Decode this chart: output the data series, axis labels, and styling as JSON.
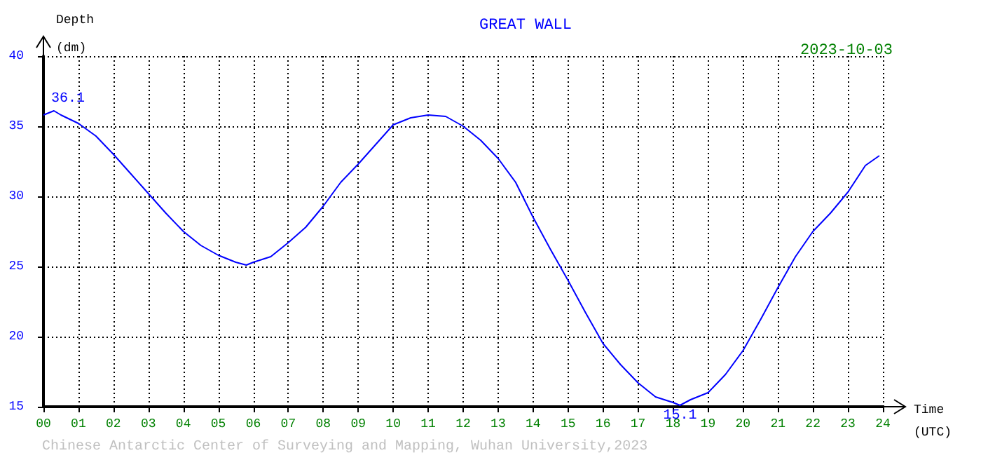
{
  "chart_data": {
    "type": "line",
    "title": "GREAT WALL",
    "subtitle": "2023-10-03",
    "xlabel": "Time\n(UTC)",
    "ylabel": "Depth\n(dm)",
    "x": [
      0,
      0.3,
      0.5,
      1,
      1.5,
      2,
      2.5,
      3,
      3.5,
      4,
      4.5,
      5,
      5.5,
      5.8,
      6,
      6.5,
      7,
      7.5,
      8,
      8.5,
      9,
      9.5,
      10,
      10.5,
      11,
      11.5,
      12,
      12.5,
      13,
      13.5,
      14,
      14.5,
      15,
      15.5,
      16,
      16.5,
      17,
      17.5,
      18,
      18.2,
      18.5,
      19,
      19.5,
      20,
      20.5,
      21,
      21.5,
      22,
      22.5,
      23,
      23.5,
      23.9
    ],
    "series": [
      {
        "color": "#0000ff",
        "values": [
          35.8,
          36.1,
          35.8,
          35.2,
          34.3,
          33.0,
          31.6,
          30.2,
          28.8,
          27.5,
          26.5,
          25.8,
          25.3,
          25.1,
          25.3,
          25.7,
          26.7,
          27.8,
          29.3,
          31.0,
          32.3,
          33.7,
          35.1,
          35.6,
          35.8,
          35.7,
          35.0,
          34.0,
          32.7,
          31.0,
          28.5,
          26.2,
          24.0,
          21.7,
          19.5,
          18.0,
          16.7,
          15.7,
          15.3,
          15.1,
          15.5,
          16.0,
          17.3,
          19.0,
          21.2,
          23.5,
          25.7,
          27.5,
          28.8,
          30.3,
          32.2,
          32.9
        ]
      }
    ],
    "xlim": [
      0,
      24
    ],
    "xticks": [
      {
        "value": 0,
        "label": "00"
      },
      {
        "value": 1,
        "label": "01"
      },
      {
        "value": 2,
        "label": "02"
      },
      {
        "value": 3,
        "label": "03"
      },
      {
        "value": 4,
        "label": "04"
      },
      {
        "value": 5,
        "label": "05"
      },
      {
        "value": 6,
        "label": "06"
      },
      {
        "value": 7,
        "label": "07"
      },
      {
        "value": 8,
        "label": "08"
      },
      {
        "value": 9,
        "label": "09"
      },
      {
        "value": 10,
        "label": "10"
      },
      {
        "value": 11,
        "label": "11"
      },
      {
        "value": 12,
        "label": "12"
      },
      {
        "value": 13,
        "label": "13"
      },
      {
        "value": 14,
        "label": "14"
      },
      {
        "value": 15,
        "label": "15"
      },
      {
        "value": 16,
        "label": "16"
      },
      {
        "value": 17,
        "label": "17"
      },
      {
        "value": 18,
        "label": "18"
      },
      {
        "value": 19,
        "label": "19"
      },
      {
        "value": 20,
        "label": "20"
      },
      {
        "value": 21,
        "label": "21"
      },
      {
        "value": 22,
        "label": "22"
      },
      {
        "value": 23,
        "label": "23"
      },
      {
        "value": 24,
        "label": "24"
      }
    ],
    "ylim": [
      15,
      40
    ],
    "yticks": [
      15,
      20,
      25,
      30,
      35,
      40
    ],
    "grid": true,
    "marker": "none",
    "line_style": "solid",
    "annotations": [
      {
        "text": "36.1",
        "x": 0.3,
        "y": 36.1
      },
      {
        "text": "15.1",
        "x": 18.2,
        "y": 15.1
      },
      "Chinese Antarctic Center of Surveying and Mapping, Wuhan University,2023"
    ]
  }
}
